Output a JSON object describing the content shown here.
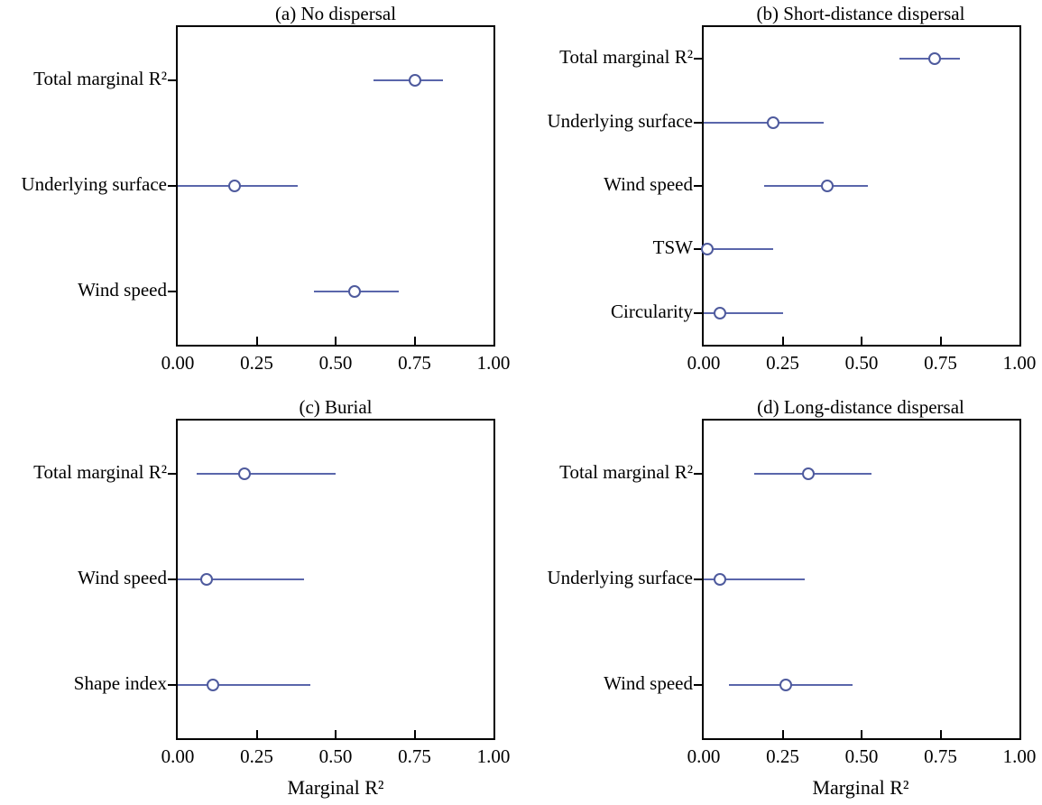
{
  "colors": {
    "marker": "#4e5a9d",
    "interval_line": "#5a66ab",
    "axis": "#000000",
    "text": "#000000",
    "background": "#ffffff"
  },
  "xlabel_shared": "Marginal R²",
  "chart_data": [
    {
      "type": "scatter",
      "panel": "a",
      "title": "(a) No dispersal",
      "xlabel": "",
      "xlim": [
        0.0,
        1.0
      ],
      "xticks": [
        0.0,
        0.25,
        0.5,
        0.75,
        1.0
      ],
      "xtick_labels": [
        "0.00",
        "0.25",
        "0.50",
        "0.75",
        "1.00"
      ],
      "categories": [
        "Total marginal R²",
        "Underlying surface",
        "Wind speed"
      ],
      "points": [
        {
          "label": "Total marginal R²",
          "estimate": 0.75,
          "ci": [
            0.62,
            0.84
          ]
        },
        {
          "label": "Underlying surface",
          "estimate": 0.18,
          "ci": [
            0.0,
            0.38
          ]
        },
        {
          "label": "Wind speed",
          "estimate": 0.56,
          "ci": [
            0.43,
            0.7
          ]
        }
      ]
    },
    {
      "type": "scatter",
      "panel": "b",
      "title": "(b) Short-distance dispersal",
      "xlabel": "",
      "xlim": [
        0.0,
        1.0
      ],
      "xticks": [
        0.0,
        0.25,
        0.5,
        0.75,
        1.0
      ],
      "xtick_labels": [
        "0.00",
        "0.25",
        "0.50",
        "0.75",
        "1.00"
      ],
      "categories": [
        "Total marginal R²",
        "Underlying surface",
        "Wind speed",
        "TSW",
        "Circularity"
      ],
      "points": [
        {
          "label": "Total marginal R²",
          "estimate": 0.73,
          "ci": [
            0.62,
            0.81
          ]
        },
        {
          "label": "Underlying surface",
          "estimate": 0.22,
          "ci": [
            0.0,
            0.38
          ]
        },
        {
          "label": "Wind speed",
          "estimate": 0.39,
          "ci": [
            0.19,
            0.52
          ]
        },
        {
          "label": "TSW",
          "estimate": 0.01,
          "ci": [
            0.0,
            0.22
          ]
        },
        {
          "label": "Circularity",
          "estimate": 0.05,
          "ci": [
            0.0,
            0.25
          ]
        }
      ]
    },
    {
      "type": "scatter",
      "panel": "c",
      "title": "(c) Burial",
      "xlabel": "Marginal R²",
      "xlim": [
        0.0,
        1.0
      ],
      "xticks": [
        0.0,
        0.25,
        0.5,
        0.75,
        1.0
      ],
      "xtick_labels": [
        "0.00",
        "0.25",
        "0.50",
        "0.75",
        "1.00"
      ],
      "categories": [
        "Total marginal R²",
        "Wind speed",
        "Shape index"
      ],
      "points": [
        {
          "label": "Total marginal R²",
          "estimate": 0.21,
          "ci": [
            0.06,
            0.5
          ]
        },
        {
          "label": "Wind speed",
          "estimate": 0.09,
          "ci": [
            0.0,
            0.4
          ]
        },
        {
          "label": "Shape index",
          "estimate": 0.11,
          "ci": [
            0.0,
            0.42
          ]
        }
      ]
    },
    {
      "type": "scatter",
      "panel": "d",
      "title": "(d) Long-distance dispersal",
      "xlabel": "Marginal R²",
      "xlim": [
        0.0,
        1.0
      ],
      "xticks": [
        0.0,
        0.25,
        0.5,
        0.75,
        1.0
      ],
      "xtick_labels": [
        "0.00",
        "0.25",
        "0.50",
        "0.75",
        "1.00"
      ],
      "categories": [
        "Total marginal R²",
        "Underlying surface",
        "Wind speed"
      ],
      "points": [
        {
          "label": "Total marginal R²",
          "estimate": 0.33,
          "ci": [
            0.16,
            0.53
          ]
        },
        {
          "label": "Underlying surface",
          "estimate": 0.05,
          "ci": [
            0.0,
            0.32
          ]
        },
        {
          "label": "Wind speed",
          "estimate": 0.26,
          "ci": [
            0.08,
            0.47
          ]
        }
      ]
    }
  ]
}
